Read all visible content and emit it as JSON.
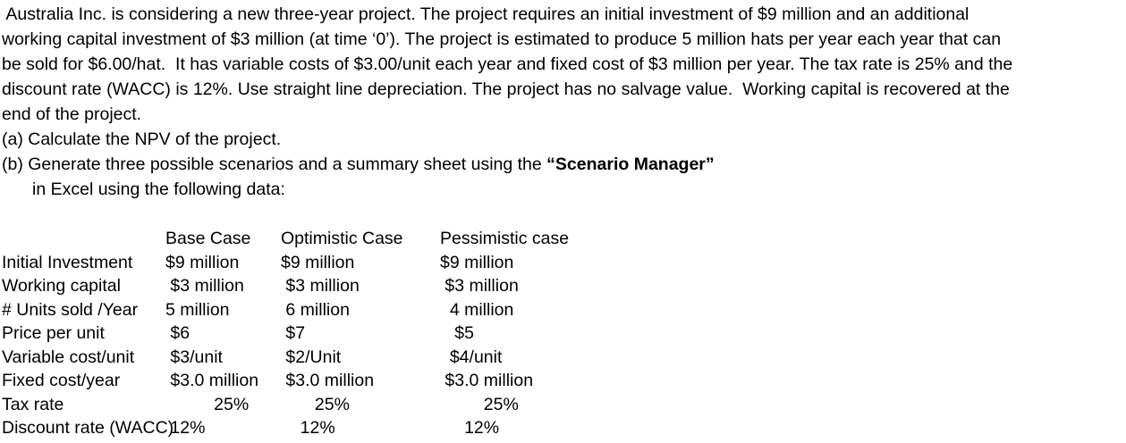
{
  "problem": {
    "lines": [
      " Australia Inc. is considering a new three-year project. The project requires an initial investment of $9 million and an additional",
      "working capital investment of $3 million (at time ‘0’). The project is estimated to produce 5 million hats per year each year that can",
      "be sold for $6.00/hat.  It has variable costs of $3.00/unit each year and fixed cost of $3 million per year. The tax rate is 25% and the",
      "discount rate (WACC) is 12%. Use straight line depreciation. The project has no salvage value.  Working capital is recovered at the",
      "end of the project."
    ],
    "part_a": "(a) Calculate the NPV of the project.",
    "part_b_prefix": "(b) Generate three possible scenarios and a summary sheet using the ",
    "part_b_bold": "“Scenario Manager”",
    "part_b_line2": "in Excel using the following data:"
  },
  "table": {
    "headers": [
      "",
      "Base Case",
      "Optimistic Case",
      "Pessimistic case"
    ],
    "rows": [
      {
        "label": "Initial Investment",
        "base": "$9 million",
        "optimistic": "$9 million",
        "pessimistic": "$9 million"
      },
      {
        "label": "Working capital",
        "base": " $3 million",
        "optimistic": " $3 million",
        "pessimistic": " $3 million"
      },
      {
        "label": "# Units sold /Year",
        "base": "5 million",
        "optimistic": " 6 million",
        "pessimistic": "  4 million"
      },
      {
        "label": "Price per unit",
        "base": " $6",
        "optimistic": " $7",
        "pessimistic": "   $5"
      },
      {
        "label": "Variable cost/unit",
        "base": " $3/unit",
        "optimistic": " $2/Unit",
        "pessimistic": "  $4/unit"
      },
      {
        "label": "Fixed cost/year",
        "base": " $3.0 million",
        "optimistic": " $3.0 million",
        "pessimistic": " $3.0 million"
      },
      {
        "label": "Tax rate",
        "base": "          25%",
        "optimistic": "       25%",
        "pessimistic": "         25%"
      },
      {
        "label": "Discount rate (WACC)",
        "base": " 12%",
        "optimistic": "    12%",
        "pessimistic": "     12%"
      }
    ]
  }
}
